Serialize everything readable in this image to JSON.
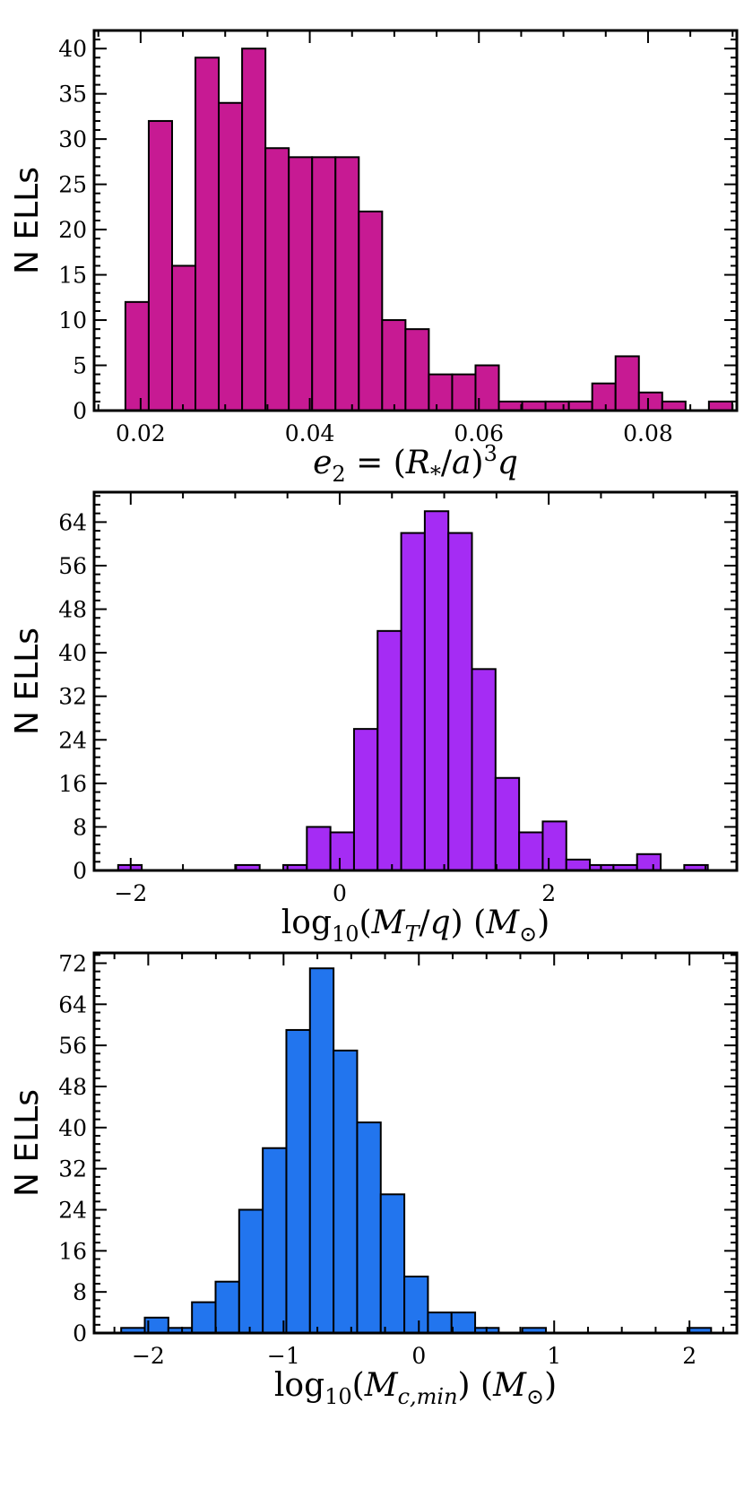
{
  "chart_data": [
    {
      "type": "bar",
      "title": "",
      "ylabel": "N ELLs",
      "xlabel_parts": [
        [
          "e",
          "it"
        ],
        [
          "2",
          "sub"
        ],
        [
          " = (",
          "up"
        ],
        [
          "R",
          "it"
        ],
        [
          "*",
          "sub"
        ],
        [
          "/",
          "up"
        ],
        [
          "a",
          "it"
        ],
        [
          ")",
          "up"
        ],
        [
          "3",
          "sup"
        ],
        [
          "q",
          "it"
        ]
      ],
      "xlabel_text": "e2 = (R*/a)3q",
      "color": "#C71A93",
      "xlim": [
        0.0145,
        0.0905
      ],
      "ylim": [
        0,
        42
      ],
      "xticks": [
        0.02,
        0.04,
        0.06,
        0.08
      ],
      "xtick_labels": [
        "0.02",
        "0.04",
        "0.06",
        "0.08"
      ],
      "yticks": [
        0,
        5,
        10,
        15,
        20,
        25,
        30,
        35,
        40
      ],
      "ytick_labels": [
        "0",
        "5",
        "10",
        "15",
        "20",
        "25",
        "30",
        "35",
        "40"
      ],
      "bin_start": 0.0182,
      "bin_width": 0.00276,
      "values": [
        12,
        32,
        16,
        39,
        34,
        40,
        29,
        28,
        28,
        28,
        22,
        10,
        9,
        4,
        4,
        5,
        1,
        1,
        1,
        1,
        3,
        6,
        2,
        1,
        0,
        1
      ]
    },
    {
      "type": "bar",
      "title": "",
      "ylabel": "N ELLs",
      "xlabel_parts": [
        [
          "log",
          "up"
        ],
        [
          "10",
          "sub"
        ],
        [
          "(",
          "up"
        ],
        [
          "M",
          "it"
        ],
        [
          "T",
          "sub-it"
        ],
        [
          "/",
          "up"
        ],
        [
          "q",
          "it"
        ],
        [
          ") (",
          "up"
        ],
        [
          "M",
          "it"
        ],
        [
          "⊙",
          "sub"
        ],
        [
          ")",
          "up"
        ]
      ],
      "xlabel_text": "log10(MT/q) (M⊙)",
      "color": "#A52CF4",
      "xlim": [
        -2.35,
        3.8
      ],
      "ylim": [
        0,
        69.5
      ],
      "xticks": [
        -2,
        0,
        2
      ],
      "xtick_labels": [
        "−2",
        "0",
        "2"
      ],
      "yticks": [
        0,
        8,
        16,
        24,
        32,
        40,
        48,
        56,
        64
      ],
      "ytick_labels": [
        "0",
        "8",
        "16",
        "24",
        "32",
        "40",
        "48",
        "56",
        "64"
      ],
      "bin_start": -2.12,
      "bin_width": 0.2257,
      "values": [
        1,
        0,
        0,
        0,
        0,
        1,
        0,
        1,
        8,
        7,
        26,
        44,
        62,
        66,
        62,
        37,
        17,
        7,
        9,
        2,
        1,
        1,
        3,
        0,
        1
      ]
    },
    {
      "type": "bar",
      "title": "",
      "ylabel": "N ELLs",
      "xlabel_parts": [
        [
          "log",
          "up"
        ],
        [
          "10",
          "sub"
        ],
        [
          "(",
          "up"
        ],
        [
          "M",
          "it"
        ],
        [
          "c,min",
          "sub-it"
        ],
        [
          ") (",
          "up"
        ],
        [
          "M",
          "it"
        ],
        [
          "⊙",
          "sub"
        ],
        [
          ")",
          "up"
        ]
      ],
      "xlabel_text": "log10(Mc,min) (M⊙)",
      "color": "#2275EE",
      "xlim": [
        -2.4,
        2.35
      ],
      "ylim": [
        0,
        74
      ],
      "xticks": [
        -2,
        -1,
        0,
        1,
        2
      ],
      "xtick_labels": [
        "−2",
        "−1",
        "0",
        "1",
        "2"
      ],
      "yticks": [
        0,
        8,
        16,
        24,
        32,
        40,
        48,
        56,
        64,
        72
      ],
      "ytick_labels": [
        "0",
        "8",
        "16",
        "24",
        "32",
        "40",
        "48",
        "56",
        "64",
        "72"
      ],
      "bin_start": -2.2,
      "bin_width": 0.1744,
      "values": [
        1,
        3,
        1,
        6,
        10,
        24,
        36,
        59,
        71,
        55,
        41,
        27,
        11,
        4,
        4,
        1,
        0,
        1,
        0,
        0,
        0,
        0,
        0,
        0,
        1
      ]
    }
  ]
}
